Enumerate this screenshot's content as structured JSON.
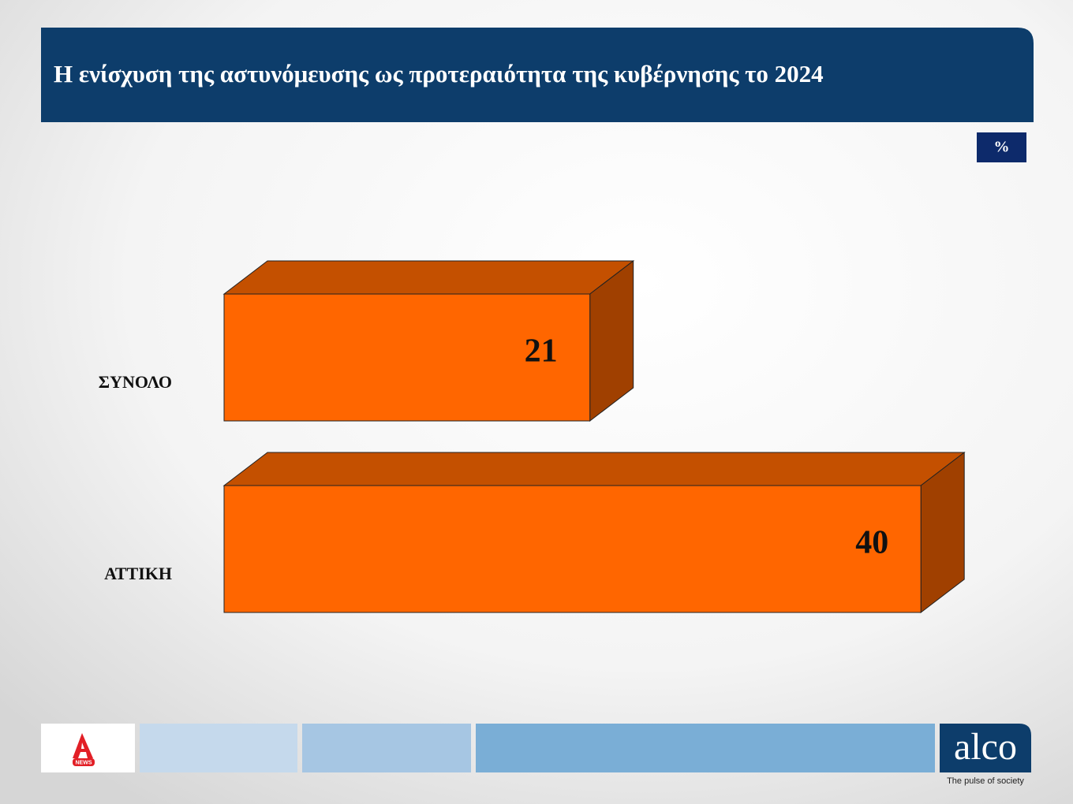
{
  "chart_data": {
    "type": "bar",
    "title": "Η ενίσχυση της αστυνόμευσης ως προτεραιότητα της κυβέρνησης το 2024",
    "unit": "%",
    "categories": [
      "ΣΥΝΟΛΟ",
      "ΑΤΤΙΚΗ"
    ],
    "values": [
      21,
      40
    ],
    "color": "#ff6600"
  },
  "footer": {
    "logo_sub": "NEWS",
    "brand": "alco",
    "tagline": "The pulse of society"
  }
}
